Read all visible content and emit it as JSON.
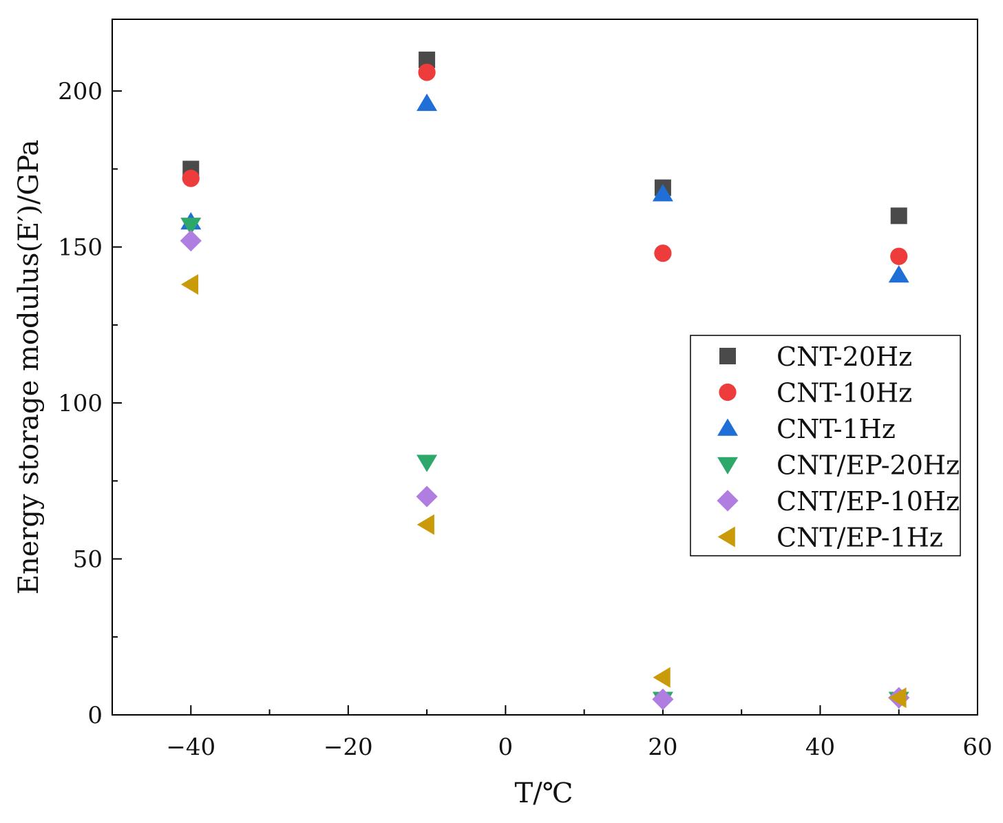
{
  "chart_data": {
    "type": "scatter",
    "title": "",
    "xlabel": "T/℃",
    "ylabel": "Energy storage modulus(E′)/GPa",
    "xlim": [
      -50,
      60
    ],
    "ylim": [
      0,
      223
    ],
    "xticks": [
      -40,
      -20,
      0,
      20,
      40,
      60
    ],
    "yticks": [
      0,
      50,
      100,
      150,
      200
    ],
    "x_minor_ticks": [
      -30,
      -10,
      10,
      30,
      50
    ],
    "y_minor_ticks": [
      25,
      75,
      125,
      175
    ],
    "grid": false,
    "legend_position": "right",
    "x": [
      -40,
      -10,
      20,
      50
    ],
    "series": [
      {
        "name": "CNT-20Hz",
        "marker": "square",
        "color": "#4a4a4a",
        "values": [
          175,
          210,
          169,
          160
        ]
      },
      {
        "name": "CNT-10Hz",
        "marker": "circle",
        "color": "#ee3b3b",
        "values": [
          172,
          206,
          148,
          147
        ]
      },
      {
        "name": "CNT-1Hz",
        "marker": "triangle-up",
        "color": "#1f6fd6",
        "values": [
          158,
          196,
          167,
          141
        ]
      },
      {
        "name": "CNT/EP-20Hz",
        "marker": "triangle-down",
        "color": "#2ea86a",
        "values": [
          157,
          81,
          5,
          5
        ]
      },
      {
        "name": "CNT/EP-10Hz",
        "marker": "diamond",
        "color": "#b07de0",
        "values": [
          152,
          70,
          5,
          5.5
        ]
      },
      {
        "name": "CNT/EP-1Hz",
        "marker": "triangle-left",
        "color": "#c99a0a",
        "values": [
          138,
          61,
          12,
          5.5
        ]
      }
    ]
  }
}
